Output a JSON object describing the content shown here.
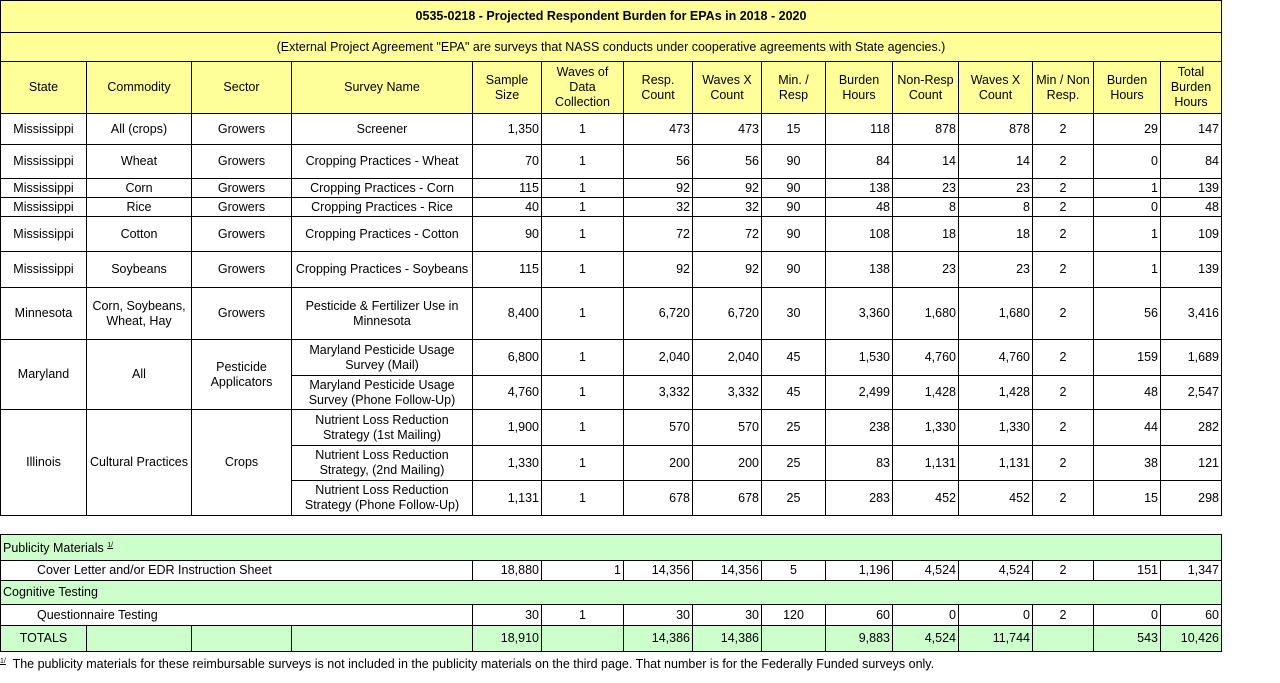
{
  "title": "0535-0218 - Projected Respondent Burden for EPAs in 2018 - 2020",
  "subtitle": "(External Project Agreement \"EPA\" are surveys that NASS conducts under cooperative agreements with State agencies.)",
  "headers": [
    "State",
    "Commodity",
    "Sector",
    "Survey Name",
    "Sample Size",
    "Waves of Data Collection",
    "Resp. Count",
    "Waves X Count",
    "Min. / Resp",
    "Burden Hours",
    "Non-Resp Count",
    "Waves X Count",
    "Min / Non Resp.",
    "Burden Hours",
    "Total Burden Hours"
  ],
  "groups": [
    {
      "state": "Mississippi",
      "commodity": "All (crops)",
      "sector": "Growers",
      "surveys": [
        {
          "name": "Screener",
          "values": [
            "1,350",
            "1",
            "473",
            "473",
            "15",
            "118",
            "878",
            "878",
            "2",
            "29",
            "147"
          ]
        }
      ]
    },
    {
      "state": "Mississippi",
      "commodity": "Wheat",
      "sector": "Growers",
      "surveys": [
        {
          "name": "Cropping Practices - Wheat",
          "values": [
            "70",
            "1",
            "56",
            "56",
            "90",
            "84",
            "14",
            "14",
            "2",
            "0",
            "84"
          ]
        }
      ]
    },
    {
      "state": "Mississippi",
      "commodity": "Corn",
      "sector": "Growers",
      "surveys": [
        {
          "name": "Cropping Practices - Corn",
          "values": [
            "115",
            "1",
            "92",
            "92",
            "90",
            "138",
            "23",
            "23",
            "2",
            "1",
            "139"
          ]
        }
      ]
    },
    {
      "state": "Mississippi",
      "commodity": "Rice",
      "sector": "Growers",
      "surveys": [
        {
          "name": "Cropping Practices - Rice",
          "values": [
            "40",
            "1",
            "32",
            "32",
            "90",
            "48",
            "8",
            "8",
            "2",
            "0",
            "48"
          ]
        }
      ]
    },
    {
      "state": "Mississippi",
      "commodity": "Cotton",
      "sector": "Growers",
      "surveys": [
        {
          "name": "Cropping Practices - Cotton",
          "values": [
            "90",
            "1",
            "72",
            "72",
            "90",
            "108",
            "18",
            "18",
            "2",
            "1",
            "109"
          ]
        }
      ]
    },
    {
      "state": "Mississippi",
      "commodity": "Soybeans",
      "sector": "Growers",
      "surveys": [
        {
          "name": "Cropping Practices - Soybeans",
          "values": [
            "115",
            "1",
            "92",
            "92",
            "90",
            "138",
            "23",
            "23",
            "2",
            "1",
            "139"
          ]
        }
      ]
    },
    {
      "state": "Minnesota",
      "commodity": "Corn, Soybeans, Wheat, Hay",
      "sector": "Growers",
      "surveys": [
        {
          "name": "Pesticide & Fertilizer Use in Minnesota",
          "values": [
            "8,400",
            "1",
            "6,720",
            "6,720",
            "30",
            "3,360",
            "1,680",
            "1,680",
            "2",
            "56",
            "3,416"
          ]
        }
      ]
    },
    {
      "state": "Maryland",
      "commodity": "All",
      "sector": "Pesticide Applicators",
      "surveys": [
        {
          "name": "Maryland Pesticide Usage Survey (Mail)",
          "values": [
            "6,800",
            "1",
            "2,040",
            "2,040",
            "45",
            "1,530",
            "4,760",
            "4,760",
            "2",
            "159",
            "1,689"
          ]
        },
        {
          "name": "Maryland Pesticide Usage Survey (Phone Follow-Up)",
          "values": [
            "4,760",
            "1",
            "3,332",
            "3,332",
            "45",
            "2,499",
            "1,428",
            "1,428",
            "2",
            "48",
            "2,547"
          ]
        }
      ]
    },
    {
      "state": "Illinois",
      "commodity": "Cultural Practices",
      "sector": "Crops",
      "surveys": [
        {
          "name": "Nutrient Loss Reduction Strategy (1st Mailing)",
          "values": [
            "1,900",
            "1",
            "570",
            "570",
            "25",
            "238",
            "1,330",
            "1,330",
            "2",
            "44",
            "282"
          ]
        },
        {
          "name": "Nutrient Loss Reduction Strategy, (2nd Mailing)",
          "values": [
            "1,330",
            "1",
            "200",
            "200",
            "25",
            "83",
            "1,131",
            "1,131",
            "2",
            "38",
            "121"
          ]
        },
        {
          "name": "Nutrient Loss Reduction Strategy (Phone Follow-Up)",
          "values": [
            "1,131",
            "1",
            "678",
            "678",
            "25",
            "283",
            "452",
            "452",
            "2",
            "15",
            "298"
          ]
        }
      ]
    }
  ],
  "sections": [
    {
      "label": "Publicity Materials",
      "footnote_mark": "1/",
      "items": [
        {
          "name": "Cover Letter and/or EDR Instruction Sheet",
          "values": [
            "18,880",
            "1",
            "14,356",
            "14,356",
            "5",
            "1,196",
            "4,524",
            "4,524",
            "2",
            "151",
            "1,347"
          ]
        }
      ]
    },
    {
      "label": "Cognitive Testing",
      "items": [
        {
          "name": "Questionnaire Testing",
          "values": [
            "30",
            "1",
            "30",
            "30",
            "120",
            "60",
            "0",
            "0",
            "2",
            "0",
            "60"
          ]
        }
      ]
    }
  ],
  "totals": {
    "label": "TOTALS",
    "values": [
      "18,910",
      "",
      "14,386",
      "14,386",
      "",
      "9,883",
      "4,524",
      "11,744",
      "",
      "543",
      "10,426"
    ]
  },
  "footnote": {
    "mark": "1/",
    "text": "The publicity materials for these reimbursable surveys is not included in the publicity materials on the third page.  That number is for the Federally Funded surveys only."
  },
  "colors": {
    "header_bg": "#ffff99",
    "section_bg": "#ccffcc"
  }
}
